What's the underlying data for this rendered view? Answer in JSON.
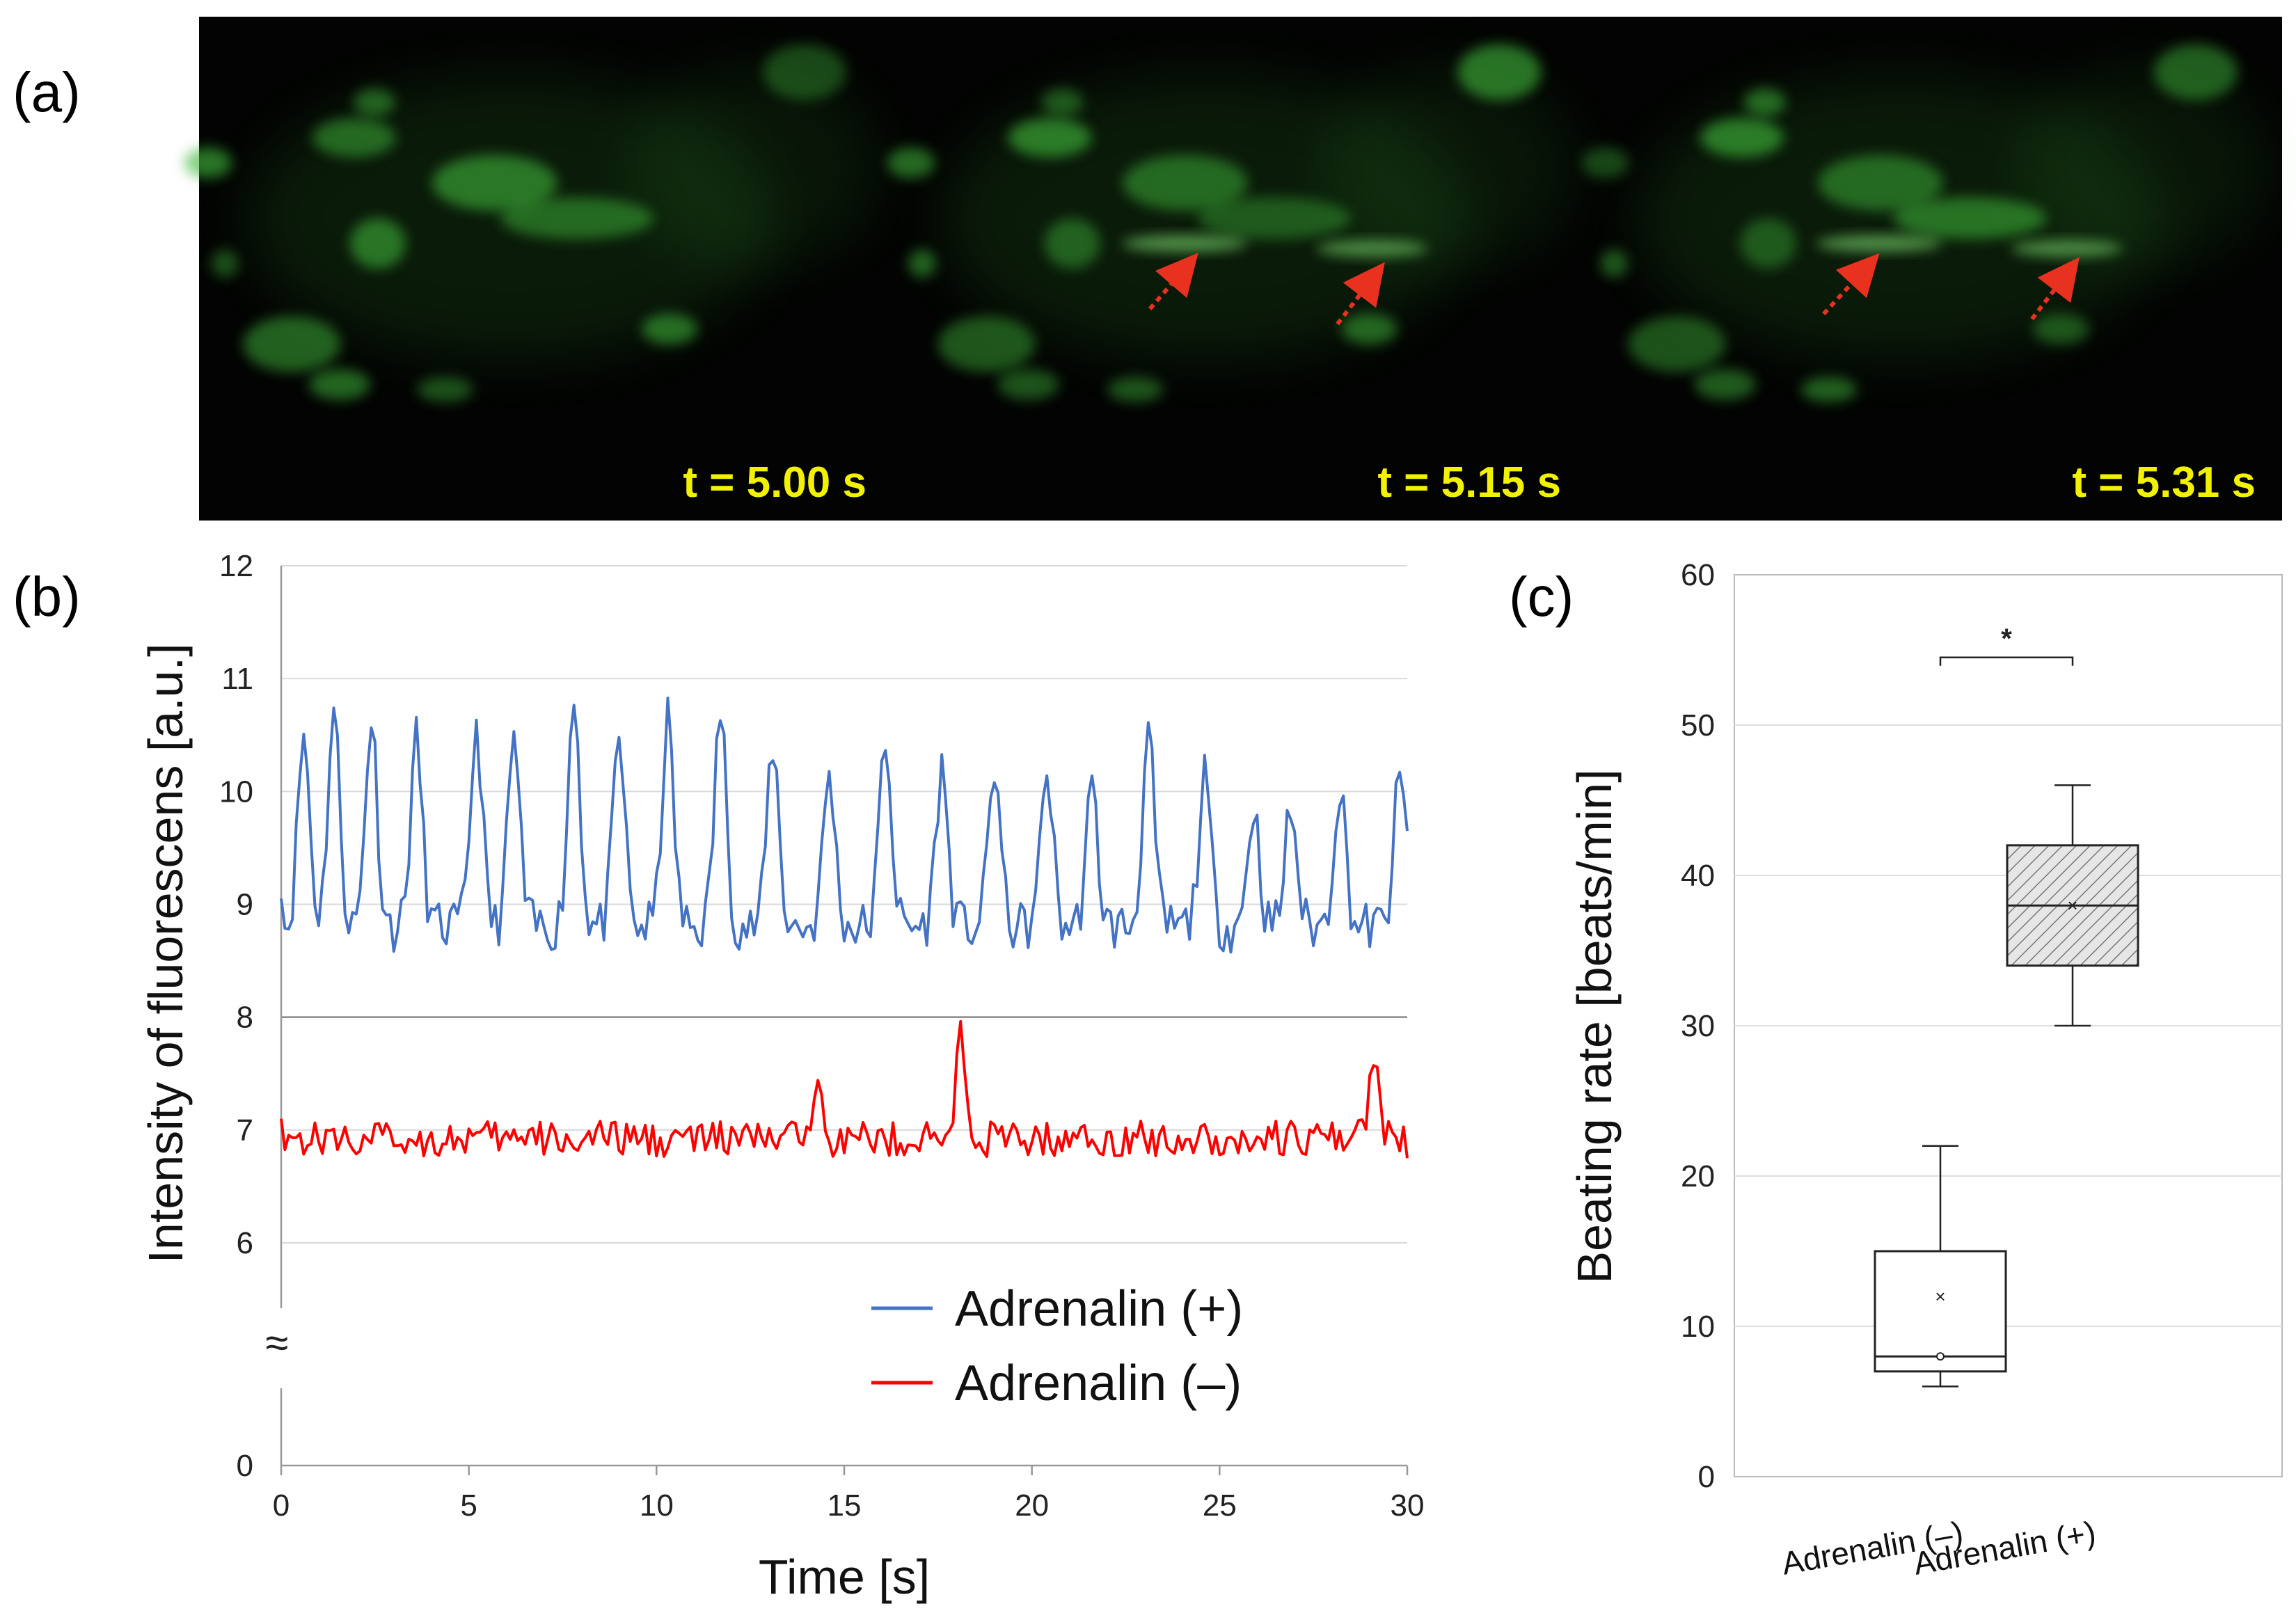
{
  "panels": {
    "a": "(a)",
    "b": "(b)",
    "c": "(c)"
  },
  "microscopy": {
    "frames": [
      "t = 5.00 s",
      "t = 5.15 s",
      "t = 5.31 s"
    ],
    "colors": {
      "background": "#020302",
      "cells": "#3fb83a",
      "arrow": "#e8311f",
      "label": "#f2f200"
    }
  },
  "chart_data": [
    {
      "type": "line",
      "panel": "b",
      "xlabel": "Time [s]",
      "ylabel": "Intensity of fluorescens [a.u.]",
      "xlim": [
        0,
        30
      ],
      "ylim": [
        0,
        12
      ],
      "axis_break": "≈",
      "xticks": [
        "0",
        "5",
        "10",
        "15",
        "20",
        "25",
        "30"
      ],
      "yticks": [
        "0",
        "6",
        "7",
        "8",
        "9",
        "10",
        "11",
        "12"
      ],
      "grid": true,
      "legend": "bottom-right",
      "series": [
        {
          "name": "Adrenalin (+)",
          "color": "#4472c4",
          "baseline": 8.8,
          "peaks": [
            [
              0.6,
              10.5
            ],
            [
              1.4,
              10.7
            ],
            [
              2.4,
              10.65
            ],
            [
              3.6,
              10.45
            ],
            [
              5.2,
              10.58
            ],
            [
              6.2,
              10.45
            ],
            [
              7.8,
              10.82
            ],
            [
              9.0,
              10.45
            ],
            [
              10.3,
              10.62
            ],
            [
              11.7,
              10.7
            ],
            [
              13.1,
              10.42
            ],
            [
              14.6,
              10.15
            ],
            [
              16.1,
              10.48
            ],
            [
              17.6,
              10.2
            ],
            [
              19.0,
              10.22
            ],
            [
              20.4,
              10.2
            ],
            [
              21.6,
              10.0
            ],
            [
              23.1,
              10.48
            ],
            [
              24.6,
              10.1
            ],
            [
              25.9,
              9.85
            ],
            [
              26.9,
              9.85
            ],
            [
              28.2,
              10.05
            ],
            [
              29.8,
              10.1
            ]
          ],
          "peak_width": 0.28,
          "start": 9.05,
          "end": 9.65
        },
        {
          "name": "Adrenalin (–)",
          "color": "#ff0000",
          "baseline": 6.92,
          "peaks": [
            [
              14.3,
              7.6
            ],
            [
              18.1,
              7.85
            ],
            [
              29.1,
              7.72
            ]
          ],
          "peak_width": 0.22,
          "start": 7.1,
          "end": 6.75
        }
      ]
    },
    {
      "type": "box",
      "panel": "c",
      "ylabel": "Beating rate [beats/min]",
      "ylim": [
        0,
        60
      ],
      "yticks": [
        "0",
        "10",
        "20",
        "30",
        "40",
        "50",
        "60"
      ],
      "grid": true,
      "significance": "*",
      "categories": [
        "Adrenalin (–)",
        "Adrenalin (+)"
      ],
      "boxes": [
        {
          "min": 6,
          "q1": 7,
          "median": 8,
          "q3": 15,
          "max": 22,
          "mean": 12,
          "fill": "none"
        },
        {
          "min": 30,
          "q1": 34,
          "median": 38,
          "q3": 42,
          "max": 46,
          "mean": 38,
          "fill": "hatched"
        }
      ]
    }
  ]
}
